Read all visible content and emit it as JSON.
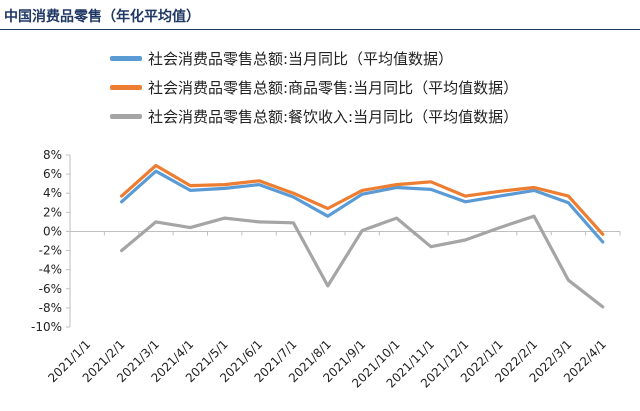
{
  "page_title": "中国消费品零售（年化平均值）",
  "chart_data": {
    "type": "line",
    "title": "",
    "xlabel": "",
    "ylabel": "",
    "ylim": [
      -10,
      8
    ],
    "y_ticks": [
      "8%",
      "6%",
      "4%",
      "2%",
      "0%",
      "-2%",
      "-4%",
      "-6%",
      "-8%",
      "-10%"
    ],
    "grid": false,
    "legend_position": "top",
    "categories": [
      "2021/1/1",
      "2021/2/1",
      "2021/3/1",
      "2021/4/1",
      "2021/5/1",
      "2021/6/1",
      "2021/7/1",
      "2021/8/1",
      "2021/9/1",
      "2021/10/1",
      "2021/11/1",
      "2021/12/1",
      "2022/1/1",
      "2022/2/1",
      "2022/3/1",
      "2022/4/1"
    ],
    "series": [
      {
        "name": "社会消费品零售总额:当月同比（平均值数据）",
        "color": "#5b9bd5",
        "values": [
          null,
          3.1,
          6.3,
          4.3,
          4.5,
          4.9,
          3.6,
          1.6,
          3.9,
          4.6,
          4.4,
          3.1,
          3.7,
          4.3,
          3.0,
          -1.1
        ]
      },
      {
        "name": "社会消费品零售总额:商品零售:当月同比（平均值数据）",
        "color": "#ed7d31",
        "values": [
          null,
          3.7,
          6.9,
          4.8,
          4.9,
          5.3,
          4.0,
          2.4,
          4.3,
          4.9,
          5.2,
          3.7,
          4.2,
          4.6,
          3.7,
          -0.3
        ]
      },
      {
        "name": "社会消费品零售总额:餐饮收入:当月同比（平均值数据）",
        "color": "#a5a5a5",
        "values": [
          null,
          -2.0,
          1.0,
          0.4,
          1.4,
          1.0,
          0.9,
          -5.7,
          0.1,
          1.4,
          -1.6,
          -0.9,
          0.4,
          1.6,
          -5.1,
          -7.9
        ]
      }
    ]
  }
}
